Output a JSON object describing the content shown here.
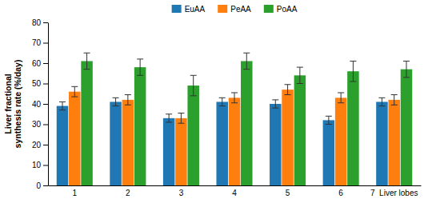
{
  "chart_data": {
    "type": "bar",
    "ylabel": "Liver fractional\nsynthesis rate (%/day)",
    "categories": [
      "1",
      "2",
      "3",
      "4",
      "5",
      "6",
      "7  Liver lobes"
    ],
    "series": [
      {
        "name": "EuAA",
        "values": [
          39,
          41,
          33,
          41,
          40,
          32,
          41
        ],
        "errors": [
          2.0,
          2.0,
          2.0,
          2.0,
          2.0,
          2.0,
          2.0
        ]
      },
      {
        "name": "PeAA",
        "values": [
          46,
          42,
          33,
          43,
          47,
          43,
          42
        ],
        "errors": [
          2.5,
          2.5,
          2.5,
          2.5,
          2.5,
          2.5,
          2.5
        ]
      },
      {
        "name": "PoAA",
        "values": [
          61,
          58,
          49,
          61,
          54,
          56,
          57
        ],
        "errors": [
          4.0,
          4.0,
          5.0,
          4.0,
          4.0,
          5.0,
          4.0
        ]
      }
    ],
    "ylim": [
      0,
      80
    ],
    "yticks": [
      0,
      10,
      20,
      30,
      40,
      50,
      60,
      70,
      80
    ],
    "grid": false,
    "legend": "top"
  }
}
